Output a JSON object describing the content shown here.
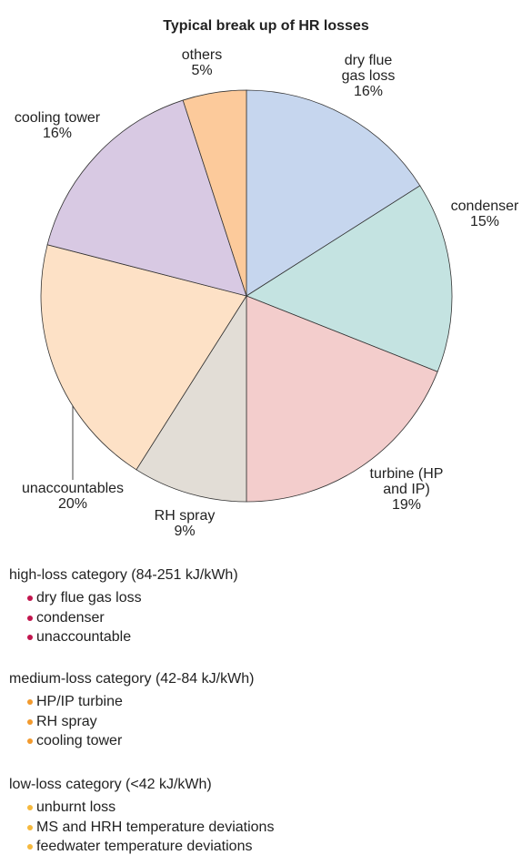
{
  "chart_data": {
    "type": "pie",
    "title": "Typical break up of HR losses",
    "categories": [
      "dry flue gas loss",
      "condenser",
      "turbine (HP and IP)",
      "RH spray",
      "unaccountables",
      "cooling tower",
      "others"
    ],
    "values": [
      16,
      15,
      19,
      9,
      20,
      16,
      5
    ],
    "value_labels": [
      "16%",
      "15%",
      "19%",
      "9%",
      "20%",
      "16%",
      "5%"
    ],
    "colors": [
      "#c6d6ee",
      "#c4e3e1",
      "#f3cdcc",
      "#e2ddd6",
      "#fde1c6",
      "#d8c9e3",
      "#fcca9b"
    ]
  },
  "notes": [
    {
      "title": "high-loss category (84-251 kJ/kWh)",
      "color": "#c2164e",
      "items": [
        "dry flue gas loss",
        "condenser",
        "unaccountable"
      ]
    },
    {
      "title": "medium-loss category (42-84 kJ/kWh)",
      "color": "#f29a2e",
      "items": [
        "HP/IP turbine",
        "RH spray",
        "cooling tower"
      ]
    },
    {
      "title": "low-loss category (<42 kJ/kWh)",
      "color": "#f6b93d",
      "items": [
        "unburnt loss",
        "MS and HRH temperature deviations",
        "feedwater temperature deviations"
      ]
    }
  ]
}
